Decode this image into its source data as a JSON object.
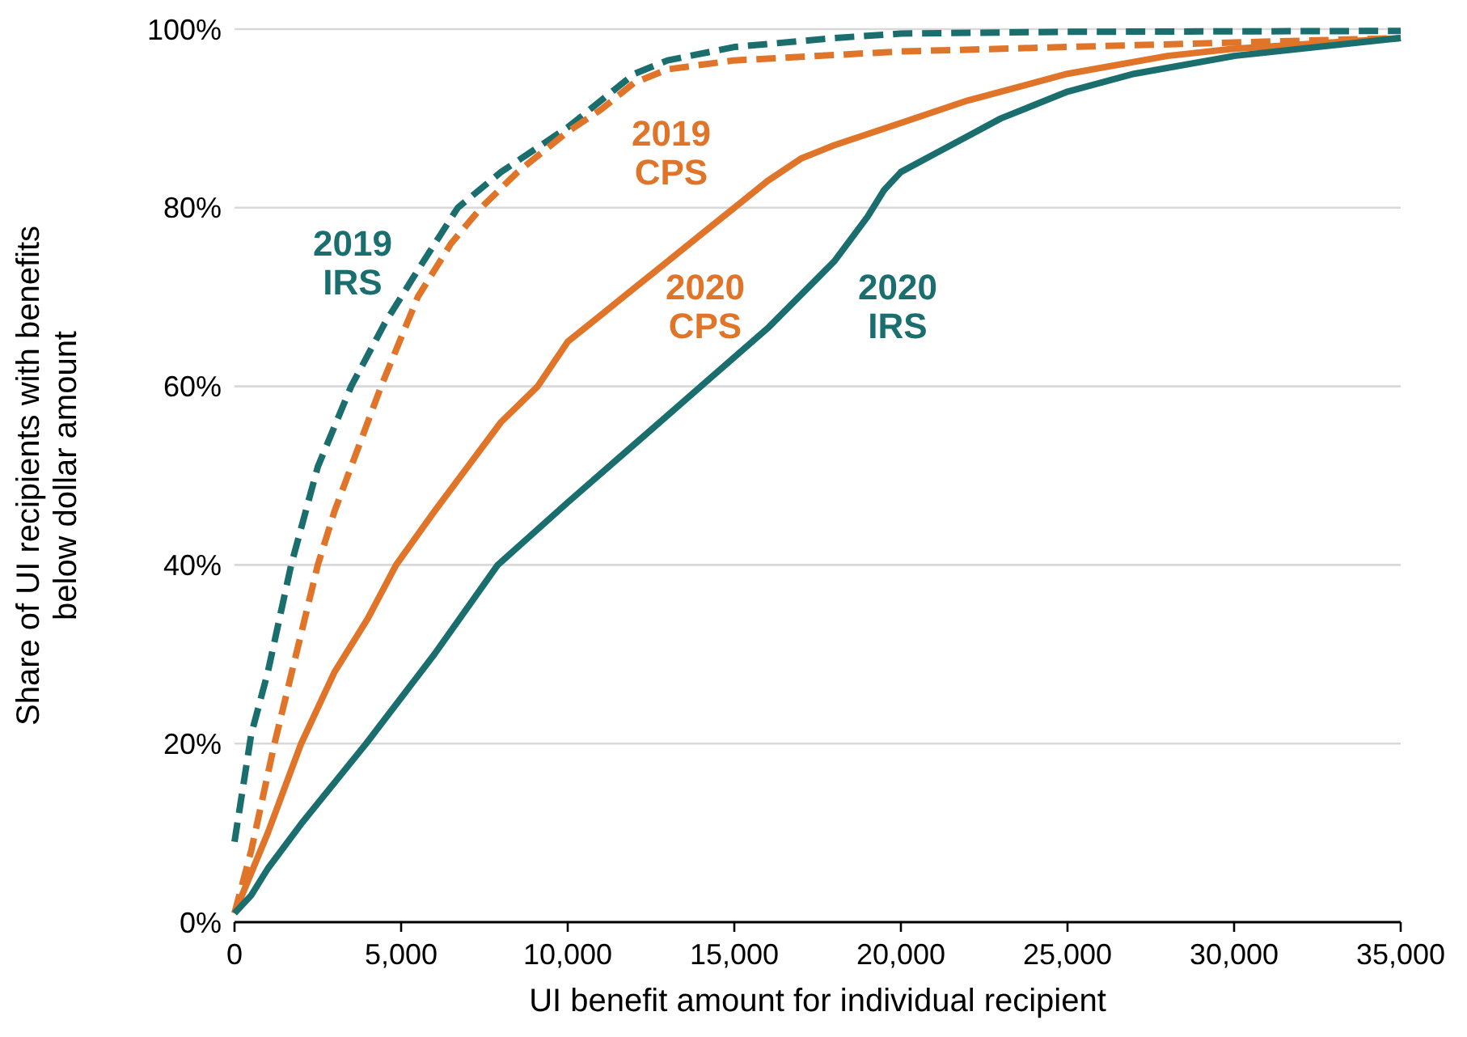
{
  "chart_data": {
    "type": "line",
    "xlabel": "UI benefit amount for individual recipient",
    "ylabel": "Share of UI recipients with benefits below dollar amount",
    "xlim": [
      0,
      35000
    ],
    "xticks": [
      {
        "value": 0,
        "label": "0"
      },
      {
        "value": 5000,
        "label": "5,000"
      },
      {
        "value": 10000,
        "label": "10,000"
      },
      {
        "value": 15000,
        "label": "15,000"
      },
      {
        "value": 20000,
        "label": "20,000"
      },
      {
        "value": 25000,
        "label": "25,000"
      },
      {
        "value": 30000,
        "label": "30,000"
      },
      {
        "value": 35000,
        "label": "35,000"
      }
    ],
    "ylim": [
      0,
      100
    ],
    "yticks": [
      {
        "value": 0,
        "label": "0%"
      },
      {
        "value": 20,
        "label": "20%"
      },
      {
        "value": 40,
        "label": "40%"
      },
      {
        "value": 60,
        "label": "60%"
      },
      {
        "value": 80,
        "label": "80%"
      },
      {
        "value": 100,
        "label": "100%"
      }
    ],
    "grid": "y",
    "marker": "none",
    "series": [
      {
        "name": "2019 IRS",
        "color": "#1a6e6e",
        "line_style": "dashed",
        "x": [
          0,
          500,
          1000,
          1700,
          2500,
          3500,
          4500,
          5500,
          6700,
          8000,
          10000,
          12000,
          13000,
          15000,
          18000,
          20000,
          25000,
          35000
        ],
        "values": [
          9,
          21,
          28,
          40,
          51,
          60,
          67,
          73,
          80,
          84,
          89,
          95,
          96.5,
          98,
          99,
          99.5,
          99.7,
          99.8
        ]
      },
      {
        "name": "2019 CPS",
        "color": "#e07428",
        "line_style": "dashed",
        "x": [
          0,
          500,
          1200,
          2500,
          3000,
          4400,
          5500,
          6500,
          7400,
          8500,
          10000,
          11000,
          12000,
          13000,
          15000,
          20000,
          25000,
          30000,
          35000
        ],
        "values": [
          1,
          8,
          20,
          40,
          46,
          60,
          70,
          76,
          80,
          84,
          88.5,
          91,
          94,
          95.5,
          96.5,
          97.5,
          98,
          98.5,
          99
        ]
      },
      {
        "name": "2020 CPS",
        "color": "#e07428",
        "line_style": "solid",
        "x": [
          0,
          1000,
          2000,
          3000,
          4000,
          4850,
          6000,
          7000,
          8000,
          9100,
          10000,
          11000,
          12000,
          13000,
          14000,
          15000,
          16000,
          17000,
          18000,
          20000,
          22000,
          25000,
          28000,
          30000,
          35000
        ],
        "values": [
          1,
          10,
          20,
          28,
          34,
          40,
          46,
          51,
          56,
          60,
          65,
          68,
          71,
          74,
          77,
          80,
          83,
          85.5,
          87,
          89.5,
          92,
          95,
          97,
          97.8,
          99
        ]
      },
      {
        "name": "2020 IRS",
        "color": "#1a6e6e",
        "line_style": "solid",
        "x": [
          0,
          500,
          1000,
          2000,
          3950,
          6000,
          7900,
          10000,
          12000,
          14000,
          16000,
          18000,
          19000,
          19500,
          20000,
          21000,
          22000,
          23000,
          25000,
          27000,
          30000,
          35000
        ],
        "values": [
          1,
          3,
          6,
          11,
          20,
          30,
          40,
          47,
          53.5,
          60,
          66.5,
          74,
          79,
          82,
          84,
          86,
          88,
          90,
          93,
          95,
          97,
          99
        ]
      }
    ]
  }
}
